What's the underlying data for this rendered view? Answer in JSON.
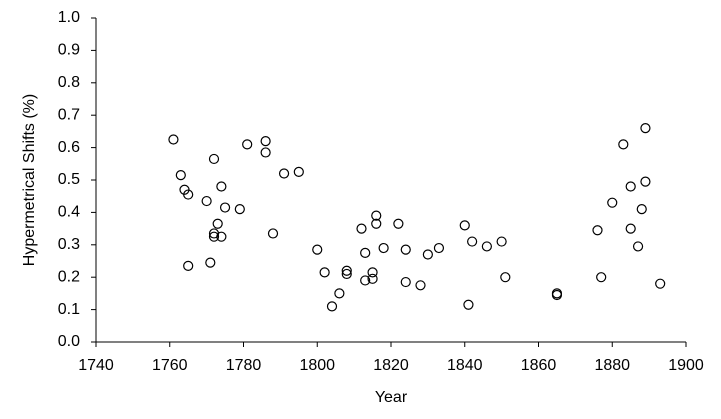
{
  "chart_data": {
    "type": "scatter",
    "xlabel": "Year",
    "ylabel": "Hypermetrical Shifts (%)",
    "x": [
      1761,
      1763,
      1764,
      1765,
      1765,
      1770,
      1771,
      1772,
      1772,
      1772,
      1773,
      1774,
      1774,
      1775,
      1779,
      1781,
      1786,
      1786,
      1788,
      1791,
      1795,
      1800,
      1802,
      1804,
      1806,
      1808,
      1808,
      1812,
      1813,
      1813,
      1815,
      1815,
      1816,
      1816,
      1818,
      1822,
      1824,
      1824,
      1828,
      1830,
      1833,
      1840,
      1841,
      1842,
      1846,
      1850,
      1851,
      1865,
      1865,
      1876,
      1877,
      1880,
      1883,
      1885,
      1885,
      1887,
      1888,
      1889,
      1889,
      1893
    ],
    "values": [
      0.625,
      0.515,
      0.47,
      0.455,
      0.235,
      0.435,
      0.245,
      0.565,
      0.335,
      0.325,
      0.365,
      0.48,
      0.325,
      0.415,
      0.41,
      0.61,
      0.62,
      0.585,
      0.335,
      0.52,
      0.525,
      0.285,
      0.215,
      0.11,
      0.15,
      0.22,
      0.21,
      0.35,
      0.275,
      0.19,
      0.215,
      0.195,
      0.39,
      0.365,
      0.29,
      0.365,
      0.285,
      0.185,
      0.175,
      0.27,
      0.29,
      0.36,
      0.115,
      0.31,
      0.295,
      0.31,
      0.2,
      0.15,
      0.145,
      0.345,
      0.2,
      0.43,
      0.61,
      0.48,
      0.35,
      0.295,
      0.41,
      0.495,
      0.66,
      0.18
    ],
    "color": "#000000",
    "xlim": [
      1740,
      1900
    ],
    "xticks": [
      1740,
      1760,
      1780,
      1800,
      1820,
      1840,
      1860,
      1880,
      1900
    ],
    "ylim": [
      0,
      1
    ],
    "yticks": [
      {
        "value": 0,
        "label": "0.0"
      },
      0.1,
      0.2,
      0.3,
      0.4,
      0.5,
      0.6,
      0.7,
      0.8,
      0.9,
      {
        "value": 1,
        "label": "1.0"
      }
    ],
    "grid": false
  }
}
